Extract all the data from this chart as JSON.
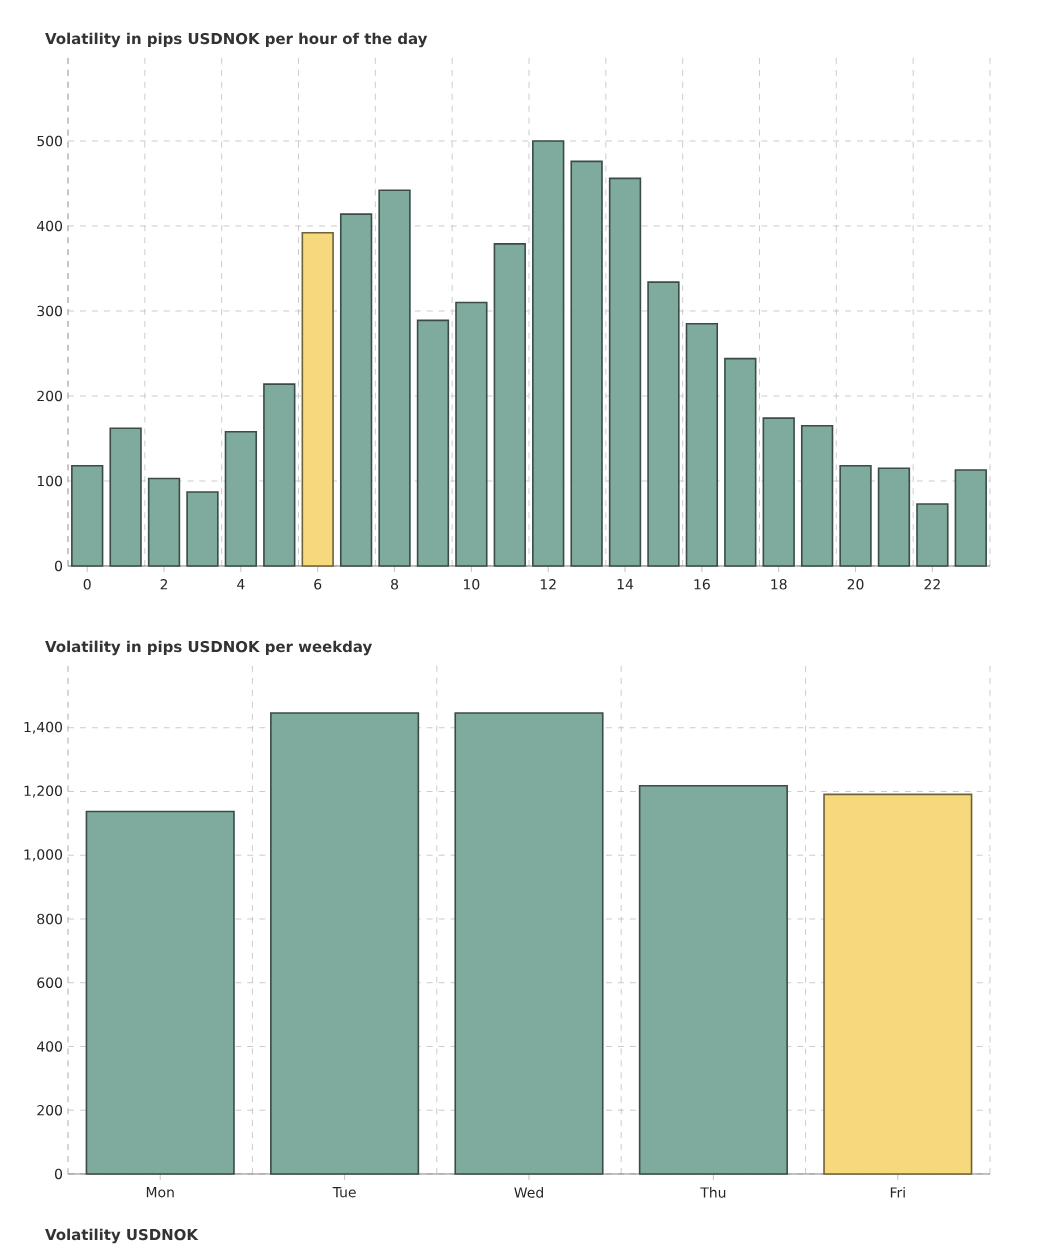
{
  "chart_data": [
    {
      "type": "bar",
      "title": "Volatility in pips USDNOK per hour of the day",
      "x": [
        0,
        1,
        2,
        3,
        4,
        5,
        6,
        7,
        8,
        9,
        10,
        11,
        12,
        13,
        14,
        15,
        16,
        17,
        18,
        19,
        20,
        21,
        22,
        23
      ],
      "values": [
        118,
        162,
        103,
        87,
        158,
        214,
        392,
        414,
        442,
        289,
        310,
        379,
        500,
        476,
        456,
        334,
        285,
        244,
        174,
        165,
        118,
        115,
        73,
        113
      ],
      "colors": [
        "#7faa9e",
        "#7faa9e",
        "#7faa9e",
        "#7faa9e",
        "#7faa9e",
        "#7faa9e",
        "#f5d97c",
        "#7faa9e",
        "#7faa9e",
        "#7faa9e",
        "#7faa9e",
        "#7faa9e",
        "#7faa9e",
        "#7faa9e",
        "#7faa9e",
        "#7faa9e",
        "#7faa9e",
        "#7faa9e",
        "#7faa9e",
        "#7faa9e",
        "#7faa9e",
        "#7faa9e",
        "#7faa9e",
        "#7faa9e"
      ],
      "xlim": [
        -0.5,
        23.5
      ],
      "xticks": [
        0,
        2,
        4,
        6,
        8,
        10,
        12,
        14,
        16,
        18,
        20,
        22
      ],
      "ylim": [
        0,
        600
      ],
      "yticks": [
        0,
        100,
        200,
        300,
        400,
        500
      ],
      "grid": true
    },
    {
      "type": "bar",
      "title": "Volatility in pips USDNOK per weekday",
      "categories": [
        "Mon",
        "Tue",
        "Wed",
        "Thu",
        "Fri"
      ],
      "values": [
        1137,
        1446,
        1446,
        1218,
        1191
      ],
      "colors": [
        "#7faa9e",
        "#7faa9e",
        "#7faa9e",
        "#7faa9e",
        "#f5d97c"
      ],
      "ylim": [
        0,
        1600
      ],
      "yticks": [
        0,
        {
          "value": 200,
          "label": "200"
        },
        {
          "value": 400,
          "label": "400"
        },
        {
          "value": 600,
          "label": "600"
        },
        {
          "value": 800,
          "label": "800"
        },
        {
          "value": 1000,
          "label": "1,000"
        },
        {
          "value": 1200,
          "label": "1,200"
        },
        {
          "value": 1400,
          "label": "1,400"
        }
      ],
      "grid": true,
      "annotations": [
        "Volatility USDNOK"
      ]
    }
  ]
}
